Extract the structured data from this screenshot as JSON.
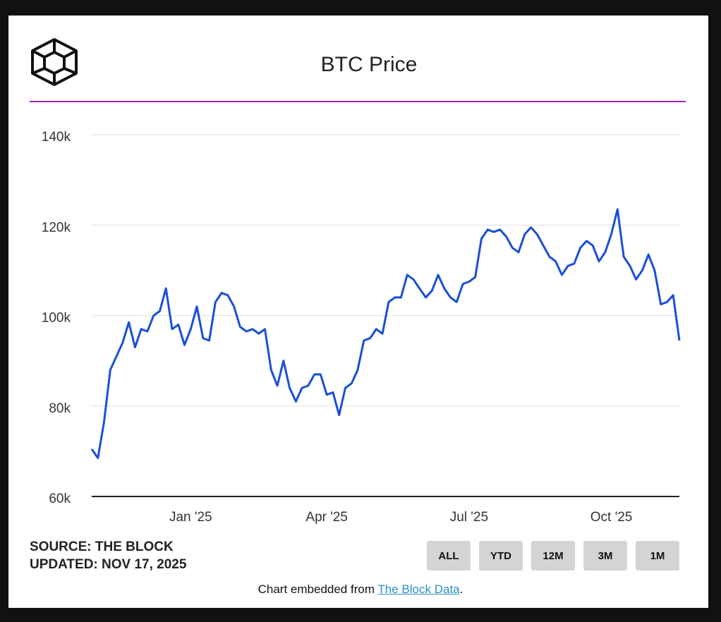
{
  "chart_data": {
    "type": "line",
    "title": "BTC Price",
    "categories": [
      null,
      null,
      null,
      null,
      null,
      null,
      null,
      null,
      null,
      null,
      null,
      null,
      null,
      null,
      null,
      null,
      "Jan '25",
      null,
      null,
      null,
      null,
      null,
      null,
      null,
      null,
      null,
      null,
      null,
      null,
      null,
      null,
      null,
      null,
      null,
      null,
      null,
      null,
      null,
      "Apr '25",
      null,
      null,
      null,
      null,
      null,
      null,
      null,
      null,
      null,
      null,
      null,
      null,
      null,
      null,
      null,
      null,
      null,
      null,
      null,
      null,
      null,
      null,
      "Jul '25",
      null,
      null,
      null,
      null,
      null,
      null,
      null,
      null,
      null,
      null,
      null,
      null,
      null,
      null,
      null,
      null,
      null,
      null,
      null,
      null,
      null,
      null,
      "Oct '25",
      null,
      null,
      null,
      null,
      null,
      null,
      null,
      null,
      null,
      null,
      null
    ],
    "values": [
      70500,
      68500,
      76500,
      88000,
      91000,
      94000,
      98500,
      93000,
      97000,
      96500,
      100000,
      101000,
      106000,
      97000,
      98000,
      93500,
      97000,
      102000,
      95000,
      94500,
      103000,
      105000,
      104500,
      102000,
      97500,
      96500,
      97000,
      96000,
      97000,
      88000,
      84500,
      90000,
      84000,
      81000,
      84000,
      84500,
      87000,
      87000,
      82500,
      83000,
      78000,
      84000,
      85000,
      88000,
      94500,
      95000,
      97000,
      96000,
      103000,
      104000,
      104000,
      109000,
      108000,
      106000,
      104000,
      105500,
      109000,
      106000,
      104000,
      103000,
      107000,
      107500,
      108500,
      117000,
      119000,
      118500,
      119000,
      117500,
      115000,
      114000,
      118000,
      119500,
      118000,
      115500,
      113000,
      112000,
      109000,
      111000,
      111500,
      115000,
      116500,
      115500,
      112000,
      114000,
      118000,
      123500,
      113000,
      111000,
      108000,
      110000,
      113500,
      110000,
      102500,
      103000,
      104500,
      94500
    ],
    "color": "#1a4fd6",
    "ylim": [
      60000,
      140000
    ],
    "yticks": [
      {
        "value": 60000,
        "label": "60k"
      },
      {
        "value": 80000,
        "label": "80k"
      },
      {
        "value": 100000,
        "label": "100k"
      },
      {
        "value": 120000,
        "label": "120k"
      },
      {
        "value": 140000,
        "label": "140k"
      }
    ],
    "grid": true
  },
  "footer": {
    "source": "SOURCE: THE BLOCK",
    "updated": "UPDATED: NOV 17, 2025",
    "embed_text": "Chart embedded from ",
    "embed_link": "The Block Data",
    "embed_end": "."
  },
  "buttons": [
    "ALL",
    "YTD",
    "12M",
    "3M",
    "1M"
  ]
}
